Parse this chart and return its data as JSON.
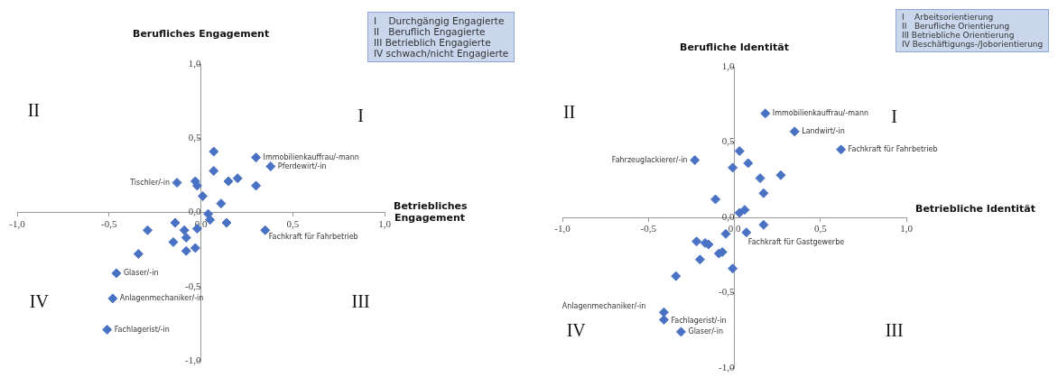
{
  "chart_data": [
    {
      "type": "scatter",
      "xlabel": "Betriebliches Engagement",
      "ylabel": "Berufliches Engagement",
      "color": "#4a72c4",
      "marker": "diamond",
      "grid": false,
      "legend": false,
      "xlim": [
        -1,
        1
      ],
      "ylim": [
        -1,
        1
      ],
      "xticks": [
        {
          "value": -1,
          "label": "-1,0"
        },
        {
          "value": -0.5,
          "label": "-0,5"
        },
        {
          "value": 0,
          "label": "0,0"
        },
        {
          "value": 0.5,
          "label": "0,5"
        },
        {
          "value": 1,
          "label": "1,0"
        }
      ],
      "yticks": [
        {
          "value": -1,
          "label": "-1,0"
        },
        {
          "value": -0.5,
          "label": "-0,5"
        },
        {
          "value": 0,
          "label": "0,0"
        },
        {
          "value": 0.5,
          "label": "0,5"
        },
        {
          "value": 1,
          "label": "1,0"
        }
      ],
      "x": [
        0.07,
        0.3,
        0.38,
        0.07,
        -0.13,
        -0.03,
        -0.02,
        0.15,
        0.2,
        0.3,
        0.01,
        0.11,
        0.04,
        0.05,
        0.14,
        0.35,
        -0.14,
        -0.29,
        -0.09,
        -0.02,
        -0.08,
        -0.15,
        -0.08,
        -0.03,
        -0.34,
        -0.46,
        -0.48,
        -0.51
      ],
      "values": [
        0.41,
        0.37,
        0.31,
        0.28,
        0.2,
        0.21,
        0.18,
        0.21,
        0.23,
        0.18,
        0.11,
        0.06,
        -0.01,
        -0.05,
        -0.07,
        -0.12,
        -0.07,
        -0.12,
        -0.12,
        -0.11,
        -0.17,
        -0.2,
        -0.26,
        -0.24,
        -0.28,
        -0.41,
        -0.58,
        -0.79
      ],
      "annotations": [
        {
          "text": "Immobilienkauffrau/-mann",
          "x": 0.3,
          "y": 0.37
        },
        {
          "text": "Pferdewirt/-in",
          "x": 0.38,
          "y": 0.31
        },
        {
          "text": "Tischler/-in",
          "x": -0.13,
          "y": 0.2
        },
        {
          "text": "Fachkraft für Fahrbetrieb",
          "x": 0.35,
          "y": -0.12
        },
        {
          "text": "Glaser/-in",
          "x": -0.46,
          "y": -0.41
        },
        {
          "text": "Anlagenmechaniker/-in",
          "x": -0.48,
          "y": -0.58
        },
        {
          "text": "Fachlagerist/-in",
          "x": -0.51,
          "y": -0.79
        },
        "I",
        "II",
        "III",
        "IV",
        "I    Durchgängig Engagierte",
        "II   Beruflich Engagierte",
        "III Betrieblich Engagierte",
        "IV schwach/nicht Engagierte"
      ]
    },
    {
      "type": "scatter",
      "xlabel": "Betriebliche Identität",
      "ylabel": "Berufliche Identität",
      "color": "#4a72c4",
      "marker": "diamond",
      "grid": false,
      "legend": false,
      "xlim": [
        -1,
        1
      ],
      "ylim": [
        -1,
        1
      ],
      "xticks": [
        {
          "value": -1,
          "label": "-1,0"
        },
        {
          "value": -0.5,
          "label": "-0,5"
        },
        {
          "value": 0,
          "label": "0,0"
        },
        {
          "value": 0.5,
          "label": "0,5"
        },
        {
          "value": 1,
          "label": "1,0"
        }
      ],
      "yticks": [
        {
          "value": -1,
          "label": "-1,0"
        },
        {
          "value": -0.5,
          "label": "-0,5"
        },
        {
          "value": 0,
          "label": "0,0"
        },
        {
          "value": 0.5,
          "label": "0,5"
        },
        {
          "value": 1,
          "label": "1,0"
        }
      ],
      "x": [
        0.18,
        0.35,
        0.62,
        0.03,
        -0.23,
        0.08,
        -0.01,
        0.27,
        0.15,
        0.17,
        -0.11,
        0.03,
        0.06,
        0.17,
        0.07,
        -0.05,
        -0.22,
        -0.17,
        -0.15,
        -0.07,
        -0.09,
        -0.2,
        -0.01,
        -0.34,
        -0.41,
        -0.41,
        -0.31
      ],
      "values": [
        0.69,
        0.57,
        0.45,
        0.44,
        0.38,
        0.36,
        0.33,
        0.28,
        0.26,
        0.16,
        0.12,
        0.03,
        0.05,
        -0.05,
        -0.1,
        -0.11,
        -0.16,
        -0.17,
        -0.18,
        -0.23,
        -0.24,
        -0.28,
        -0.34,
        -0.39,
        -0.63,
        -0.68,
        -0.76
      ],
      "annotations": [
        {
          "text": "Immobilienkauffrau/-mann",
          "x": 0.18,
          "y": 0.69
        },
        {
          "text": "Landwirt/-in",
          "x": 0.35,
          "y": 0.57
        },
        {
          "text": "Fachkraft für Fahrbetrieb",
          "x": 0.62,
          "y": 0.45
        },
        {
          "text": "Fahrzeuglackierer/-in",
          "x": -0.23,
          "y": 0.38
        },
        {
          "text": "Fachkraft für Gastgewerbe",
          "x": 0.07,
          "y": -0.1
        },
        {
          "text": "Anlagenmechaniker/-in",
          "x": -0.41,
          "y": -0.63
        },
        {
          "text": "Fachlagerist/-in",
          "x": -0.41,
          "y": -0.68
        },
        {
          "text": "Glaser/-in",
          "x": -0.31,
          "y": -0.76
        },
        "I",
        "II",
        "III",
        "IV",
        "I    Arbeitsorientierung",
        "II   Berufliche Orientierung",
        "III Betriebliche Orientierung",
        "IV Beschäftigungs-/Joborientierung"
      ]
    }
  ]
}
